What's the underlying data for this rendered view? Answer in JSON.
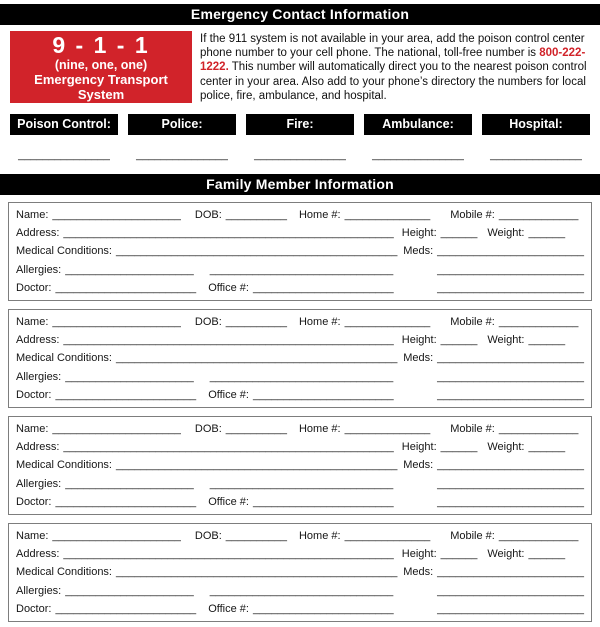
{
  "page": {
    "header_title": "Emergency Contact Information"
  },
  "emergency911": {
    "number": "9 - 1 - 1",
    "phonetic": "(nine, one, one)",
    "system_label": "Emergency Transport System",
    "para_before": "If the 911 system is not available in your area, add the poison control center phone number to your cell phone. The national, toll-free number is ",
    "para_phone": "800-222-1222.",
    "para_after": " This number will automatically direct you to the nearest poison control center in your area. Also add to your phone’s directory the numbers for local police, fire, ambulance, and hospital."
  },
  "contacts": {
    "labels": [
      "Poison Control:",
      "Police:",
      "Fire:",
      "Ambulance:",
      "Hospital:"
    ],
    "line": "_______________"
  },
  "family": {
    "header_title": "Family Member Information",
    "block_count": 4,
    "labels": {
      "name": "Name:",
      "dob": "DOB:",
      "home": "Home #:",
      "mobile": "Mobile #:",
      "address": "Address:",
      "height": "Height:",
      "weight": "Weight:",
      "medical": "Medical Conditions:",
      "meds": "Meds:",
      "allergies": "Allergies:",
      "doctor": "Doctor:",
      "office": "Office #:"
    },
    "blanks": {
      "name": "_____________________",
      "dob": "__________",
      "home": "______________",
      "mobile": "_____________",
      "address": "______________________________________________________",
      "height": "______",
      "weight": "______",
      "medical": "______________________________________________",
      "meds": "________________________",
      "allergies": "_____________________",
      "allergies2": "______________________________",
      "doctor": "_______________________",
      "office": "_______________________",
      "side": "________________________"
    }
  },
  "colors": {
    "accent_red": "#D1232A",
    "bar_black": "#000000"
  }
}
